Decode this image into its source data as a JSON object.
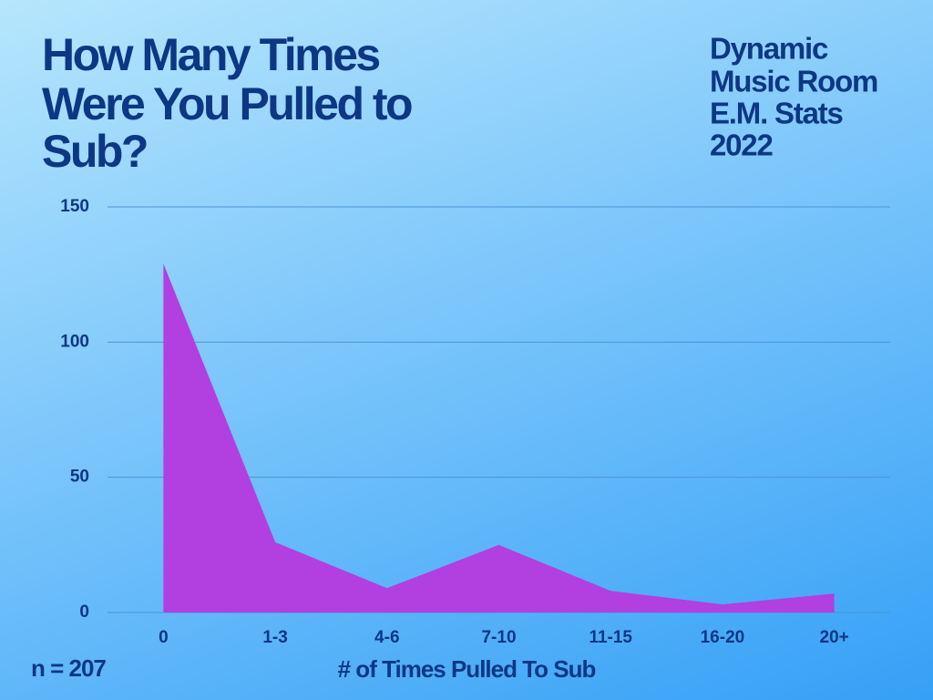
{
  "chart_data": {
    "type": "area",
    "title": [
      "How Many Times",
      "Were You Pulled to",
      "Sub?"
    ],
    "subtitle": [
      "Dynamic",
      "Music Room",
      "E.M. Stats",
      "2022"
    ],
    "x_label": "# of Times Pulled To Sub",
    "annotation": "n = 207",
    "categories": [
      "0",
      "1-3",
      "4-6",
      "7-10",
      "11-15",
      "16-20",
      "20+"
    ],
    "values": [
      129,
      26,
      9,
      25,
      8,
      3,
      7
    ],
    "color": "#b23fe0",
    "ylim": [
      0,
      150
    ],
    "yticks": [
      0,
      50,
      100,
      150
    ],
    "grid": true
  }
}
